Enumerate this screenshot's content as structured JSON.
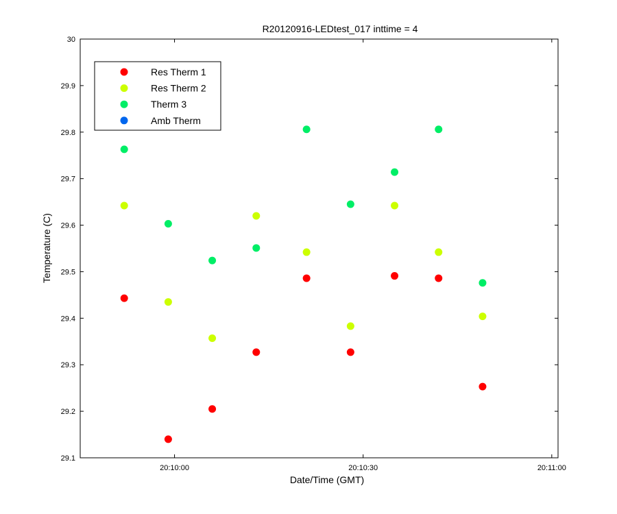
{
  "chart_data": {
    "type": "scatter",
    "title": "R20120916-LEDtest_017 inttime = 4",
    "xlabel": "Date/Time (GMT)",
    "ylabel": "Temperature (C)",
    "xlim": [
      "20:09:45",
      "20:11:01"
    ],
    "ylim": [
      29.1,
      30
    ],
    "x_tick_labels": [
      "20:10:00",
      "20:10:30",
      "20:11:00"
    ],
    "x_tick_values": [
      "20:10:00",
      "20:10:30",
      "20:11:00"
    ],
    "y_ticks": [
      29.1,
      29.2,
      29.3,
      29.4,
      29.5,
      29.6,
      29.7,
      29.8,
      29.9,
      30
    ],
    "y_tick_labels": [
      "29.1",
      "29.2",
      "29.3",
      "29.4",
      "29.5",
      "29.6",
      "29.7",
      "29.8",
      "29.9",
      "30"
    ],
    "grid": false,
    "legend_position": "top-left",
    "x": [
      "20:09:52",
      "20:09:59",
      "20:10:06",
      "20:10:13",
      "20:10:21",
      "20:10:28",
      "20:10:35",
      "20:10:42",
      "20:10:49"
    ],
    "series": [
      {
        "name": "Res Therm 1",
        "color": "#ff0000",
        "values": [
          29.443,
          29.14,
          29.205,
          29.327,
          29.486,
          29.327,
          29.491,
          29.486,
          29.253
        ]
      },
      {
        "name": "Res Therm 2",
        "color": "#ccff00",
        "values": [
          29.642,
          29.435,
          29.357,
          29.62,
          29.542,
          29.383,
          29.642,
          29.542,
          29.404
        ]
      },
      {
        "name": "Therm 3",
        "color": "#00ee66",
        "values": [
          29.763,
          29.603,
          29.524,
          29.551,
          29.806,
          29.645,
          29.714,
          29.806,
          29.476
        ]
      },
      {
        "name": "Amb Therm",
        "color": "#0066ee",
        "values": []
      }
    ]
  }
}
